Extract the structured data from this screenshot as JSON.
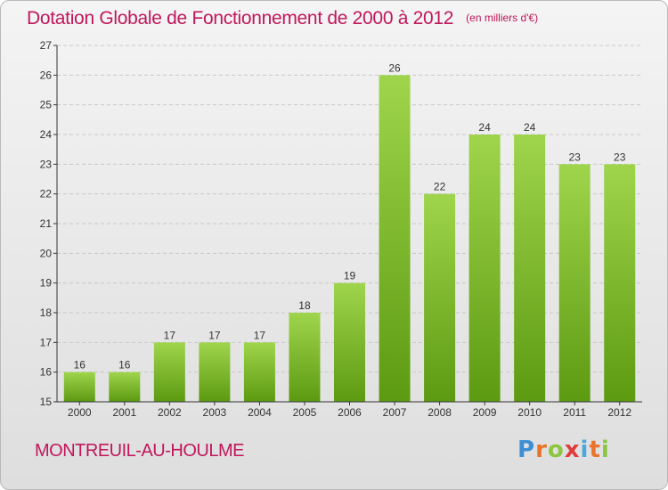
{
  "title": "Dotation Globale de Fonctionnement de 2000 à 2012",
  "subtitle": "(en milliers d'€)",
  "commune": "MONTREUIL-AU-HOULME",
  "logo": {
    "text": "Proxiti",
    "letter_colors": [
      "#3c8fd6",
      "#e8742d",
      "#8cc63f",
      "#e03c3c",
      "#4aa8dc",
      "#e8742d",
      "#8cc63f"
    ]
  },
  "colors": {
    "title": "#c0175b",
    "bar_light": "#9fd54c",
    "bar_dark": "#5c9a12",
    "axis": "#333333",
    "grid": "#c8c8c8"
  },
  "chart_data": {
    "type": "bar",
    "title": "Dotation Globale de Fonctionnement de 2000 à 2012",
    "subtitle": "(en milliers d'€)",
    "xlabel": "",
    "ylabel": "",
    "categories": [
      "2000",
      "2001",
      "2002",
      "2003",
      "2004",
      "2005",
      "2006",
      "2007",
      "2008",
      "2009",
      "2010",
      "2011",
      "2012"
    ],
    "values": [
      16,
      16,
      17,
      17,
      17,
      18,
      19,
      26,
      22,
      24,
      24,
      23,
      23
    ],
    "ylim": [
      15,
      27
    ],
    "yticks": [
      15,
      16,
      17,
      18,
      19,
      20,
      21,
      22,
      23,
      24,
      25,
      26,
      27
    ],
    "grid": true,
    "data_labels": true
  }
}
